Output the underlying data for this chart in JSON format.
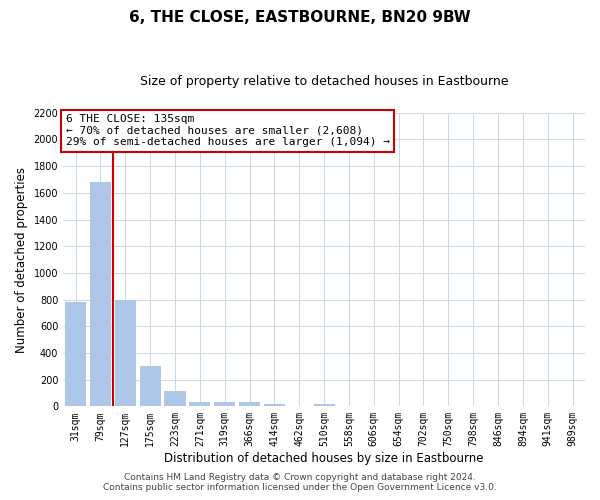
{
  "title": "6, THE CLOSE, EASTBOURNE, BN20 9BW",
  "subtitle": "Size of property relative to detached houses in Eastbourne",
  "xlabel": "Distribution of detached houses by size in Eastbourne",
  "ylabel": "Number of detached properties",
  "categories": [
    "31sqm",
    "79sqm",
    "127sqm",
    "175sqm",
    "223sqm",
    "271sqm",
    "319sqm",
    "366sqm",
    "414sqm",
    "462sqm",
    "510sqm",
    "558sqm",
    "606sqm",
    "654sqm",
    "702sqm",
    "750sqm",
    "798sqm",
    "846sqm",
    "894sqm",
    "941sqm",
    "989sqm"
  ],
  "values": [
    780,
    1680,
    800,
    300,
    115,
    35,
    35,
    35,
    20,
    0,
    20,
    0,
    0,
    0,
    0,
    0,
    0,
    0,
    0,
    0,
    0
  ],
  "bar_color": "#aec6e8",
  "vline_color": "#cc0000",
  "vline_x_index": 1.5,
  "annotation_line1": "6 THE CLOSE: 135sqm",
  "annotation_line2": "← 70% of detached houses are smaller (2,608)",
  "annotation_line3": "29% of semi-detached houses are larger (1,094) →",
  "annotation_box_edgecolor": "#cc0000",
  "annotation_box_facecolor": "#ffffff",
  "ylim": [
    0,
    2200
  ],
  "yticks": [
    0,
    200,
    400,
    600,
    800,
    1000,
    1200,
    1400,
    1600,
    1800,
    2000,
    2200
  ],
  "footer_line1": "Contains HM Land Registry data © Crown copyright and database right 2024.",
  "footer_line2": "Contains public sector information licensed under the Open Government Licence v3.0.",
  "bg_color": "#ffffff",
  "grid_color": "#c8d8e8",
  "title_fontsize": 11,
  "subtitle_fontsize": 9,
  "axis_label_fontsize": 8.5,
  "tick_fontsize": 7,
  "annotation_fontsize": 8,
  "footer_fontsize": 6.5
}
